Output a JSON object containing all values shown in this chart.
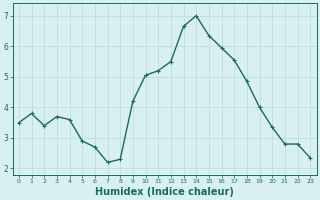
{
  "x": [
    0,
    1,
    2,
    3,
    4,
    5,
    6,
    7,
    8,
    9,
    10,
    11,
    12,
    13,
    14,
    15,
    16,
    17,
    18,
    19,
    20,
    21,
    22,
    23
  ],
  "y": [
    3.5,
    3.8,
    3.4,
    3.7,
    3.6,
    2.9,
    2.7,
    2.2,
    2.3,
    4.2,
    5.05,
    5.2,
    5.5,
    6.65,
    7.0,
    6.35,
    5.95,
    5.55,
    4.85,
    4.0,
    3.35,
    2.8,
    2.8,
    2.35
  ],
  "line_color": "#1a6b5a",
  "marker": "+",
  "marker_size": 3,
  "xlabel": "Humidex (Indice chaleur)",
  "xlabel_fontsize": 7,
  "ylim": [
    1.8,
    7.4
  ],
  "xlim": [
    -0.5,
    23.5
  ],
  "yticks": [
    2,
    3,
    4,
    5,
    6,
    7
  ],
  "xticks": [
    0,
    1,
    2,
    3,
    4,
    5,
    6,
    7,
    8,
    9,
    10,
    11,
    12,
    13,
    14,
    15,
    16,
    17,
    18,
    19,
    20,
    21,
    22,
    23
  ],
  "xtick_labels": [
    "0",
    "1",
    "2",
    "3",
    "4",
    "5",
    "6",
    "7",
    "8",
    "9",
    "10",
    "11",
    "12",
    "13",
    "14",
    "15",
    "16",
    "17",
    "18",
    "19",
    "20",
    "21",
    "22",
    "23"
  ],
  "bg_color": "#d8f0f0",
  "grid_color": "#c0dede",
  "tick_color": "#1a6b5a",
  "label_color": "#1a6b5a",
  "line_width": 1.0
}
